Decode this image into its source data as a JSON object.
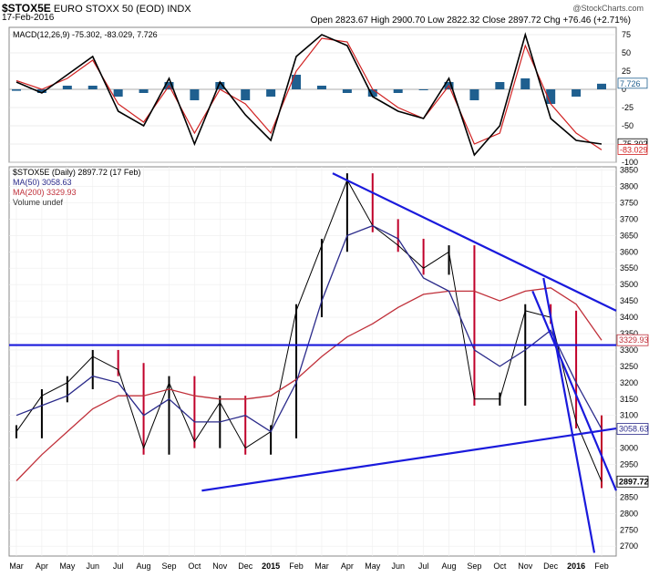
{
  "header": {
    "symbol": "$STOX5E",
    "name": "EURO STOXX 50 (EOD) INDX",
    "date": "17-Feb-2016",
    "quote": "Open 2823.67  High 2900.70  Low 2822.32  Close 2897.72  Chg +76.46 (+2.71%)",
    "brand": "@StockCharts.com"
  },
  "macd_panel": {
    "legend": "MACD(12,26,9) -75.302, -83.029, 7.726",
    "yticks": [
      75,
      50,
      25,
      0,
      -25,
      -50,
      -75,
      -100
    ],
    "tags": {
      "hist": "7.726",
      "macd": "-75.302",
      "signal": "-83.029"
    }
  },
  "price_panel": {
    "legend": [
      "$STOX5E (Daily) 2897.72 (17 Feb)",
      "MA(50) 3058.63",
      "MA(200) 3329.93",
      "Volume undef"
    ],
    "yticks": [
      3850,
      3800,
      3750,
      3700,
      3650,
      3600,
      3550,
      3500,
      3450,
      3400,
      3350,
      3300,
      3250,
      3200,
      3150,
      3100,
      3050,
      3000,
      2950,
      2900,
      2850,
      2800,
      2750,
      2700
    ],
    "tags": {
      "ma200": "3329.93",
      "ma50": "3058.63",
      "close": "2897.72"
    }
  },
  "xaxis_labels": [
    "Mar",
    "Apr",
    "May",
    "Jun",
    "Jul",
    "Aug",
    "Sep",
    "Oct",
    "Nov",
    "Dec",
    "2015",
    "Feb",
    "Mar",
    "Apr",
    "May",
    "Jun",
    "Jul",
    "Aug",
    "Sep",
    "Oct",
    "Nov",
    "Dec",
    "2016",
    "Feb"
  ],
  "colors": {
    "price_down": "#c0002a",
    "price_up": "#000000",
    "ma50": "#2a2a8a",
    "ma200": "#c0303a",
    "trend": "#1a1adc",
    "macd": "#000000",
    "signal": "#d02020",
    "hist": "#1f5f8f"
  },
  "chart_data": [
    {
      "type": "line",
      "title": "MACD(12,26,9)",
      "x": [
        "2014-03",
        "2014-04",
        "2014-05",
        "2014-06",
        "2014-07",
        "2014-08",
        "2014-09",
        "2014-10",
        "2014-11",
        "2014-12",
        "2015-01",
        "2015-02",
        "2015-03",
        "2015-04",
        "2015-05",
        "2015-06",
        "2015-07",
        "2015-08",
        "2015-09",
        "2015-10",
        "2015-11",
        "2015-12",
        "2016-01",
        "2016-02"
      ],
      "series": [
        {
          "name": "MACD",
          "values": [
            10,
            -5,
            20,
            45,
            -30,
            -50,
            15,
            -75,
            10,
            -35,
            -70,
            45,
            75,
            60,
            -10,
            -30,
            -40,
            15,
            -90,
            -50,
            75,
            -40,
            -70,
            -75
          ]
        },
        {
          "name": "Signal",
          "values": [
            12,
            0,
            15,
            40,
            -20,
            -45,
            5,
            -60,
            0,
            -20,
            -60,
            25,
            70,
            65,
            0,
            -25,
            -40,
            5,
            -75,
            -60,
            60,
            -20,
            -60,
            -83
          ]
        },
        {
          "name": "Histogram",
          "values": [
            -2,
            -5,
            5,
            5,
            -10,
            -5,
            10,
            -15,
            10,
            -15,
            -10,
            20,
            5,
            -5,
            -10,
            -5,
            0,
            10,
            -15,
            10,
            15,
            -20,
            -10,
            7.7
          ]
        }
      ],
      "ylim": [
        -100,
        85
      ]
    },
    {
      "type": "line",
      "title": "$STOX5E (Daily)",
      "x": [
        "2014-03",
        "2014-04",
        "2014-05",
        "2014-06",
        "2014-07",
        "2014-08",
        "2014-09",
        "2014-10",
        "2014-11",
        "2014-12",
        "2015-01",
        "2015-02",
        "2015-03",
        "2015-04",
        "2015-05",
        "2015-06",
        "2015-07",
        "2015-08",
        "2015-09",
        "2015-10",
        "2015-11",
        "2015-12",
        "2016-01",
        "2016-02"
      ],
      "series": [
        {
          "name": "$STOX5E",
          "values": [
            3050,
            3160,
            3200,
            3280,
            3240,
            3000,
            3200,
            3020,
            3140,
            3000,
            3050,
            3420,
            3620,
            3820,
            3680,
            3620,
            3550,
            3600,
            3150,
            3150,
            3420,
            3400,
            3080,
            2897.72
          ]
        },
        {
          "name": "MA(50)",
          "values": [
            3100,
            3130,
            3160,
            3220,
            3200,
            3100,
            3150,
            3080,
            3080,
            3100,
            3050,
            3200,
            3450,
            3650,
            3680,
            3640,
            3520,
            3480,
            3300,
            3250,
            3300,
            3360,
            3200,
            3058.63
          ]
        },
        {
          "name": "MA(200)",
          "values": [
            2900,
            2980,
            3050,
            3120,
            3160,
            3160,
            3180,
            3160,
            3150,
            3150,
            3160,
            3210,
            3280,
            3340,
            3380,
            3430,
            3470,
            3480,
            3480,
            3450,
            3480,
            3490,
            3440,
            3329.93
          ]
        }
      ],
      "ylim": [
        2670,
        3860
      ]
    }
  ]
}
